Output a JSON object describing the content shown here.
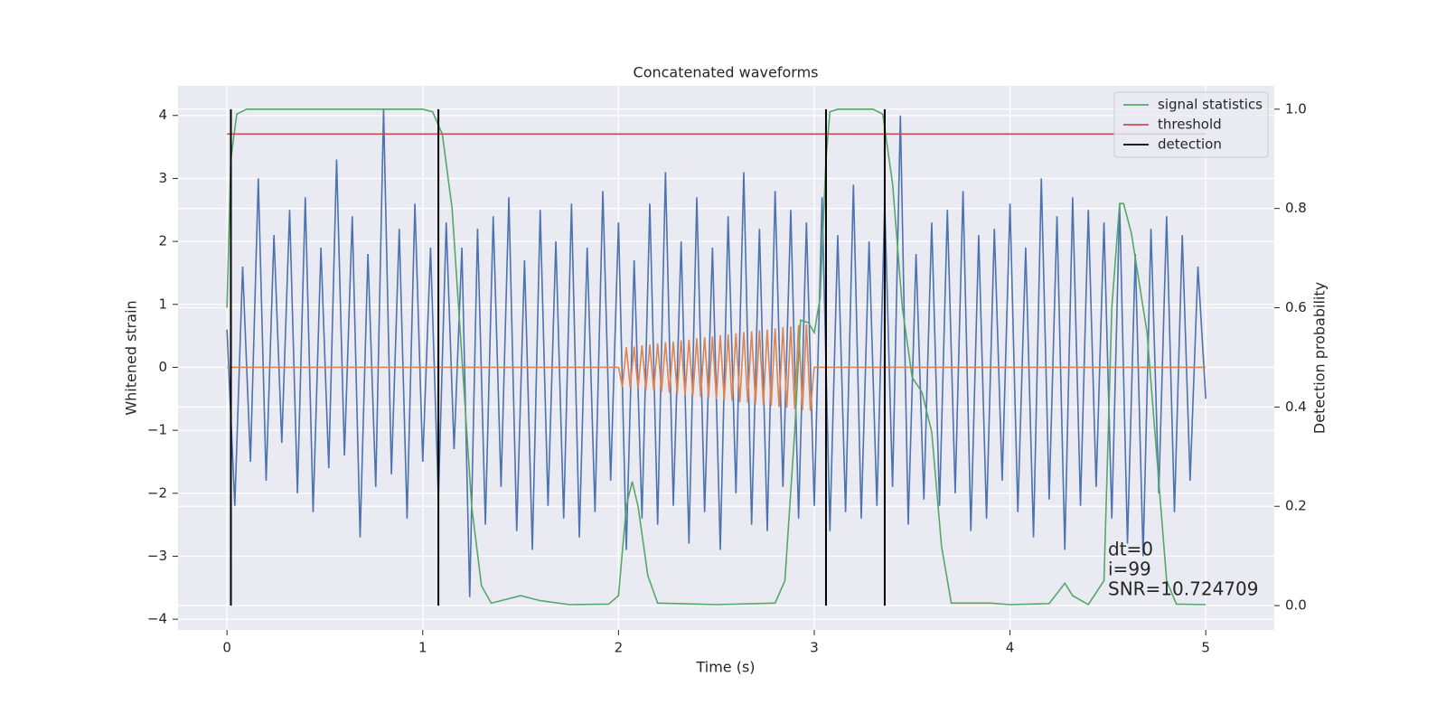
{
  "chart_data": {
    "type": "line",
    "title": "Concatenated waveforms",
    "x_label": "Time (s)",
    "y_label": "Whitened strain",
    "y2_label": "Detection probability",
    "xlim": [
      -0.25,
      5.35
    ],
    "ylim": [
      -4.17,
      4.47
    ],
    "y2lim": [
      -0.049,
      1.047
    ],
    "xticks": [
      0,
      1,
      2,
      3,
      4,
      5
    ],
    "yticks": [
      {
        "value": -4,
        "label": "−4"
      },
      {
        "value": -3,
        "label": "−3"
      },
      {
        "value": -2,
        "label": "−2"
      },
      {
        "value": -1,
        "label": "−1"
      },
      0,
      1,
      2,
      3,
      4
    ],
    "y2ticks": [
      {
        "value": 0,
        "label": "0.0"
      },
      {
        "value": 0.2,
        "label": "0.2"
      },
      {
        "value": 0.4,
        "label": "0.4"
      },
      {
        "value": 0.6,
        "label": "0.6"
      },
      {
        "value": 0.8,
        "label": "0.8"
      },
      {
        "value": 1,
        "label": "1.0"
      }
    ],
    "grid": true,
    "legend_position": "upper-right",
    "series": [
      {
        "color": "#4c72b0",
        "x": [
          0,
          0.04,
          0.08,
          0.12,
          0.16,
          0.2,
          0.24,
          0.28,
          0.32,
          0.36,
          0.4,
          0.44,
          0.48,
          0.52,
          0.56,
          0.6,
          0.64,
          0.68,
          0.72,
          0.76,
          0.8,
          0.84,
          0.88,
          0.92,
          0.96,
          1,
          1.04,
          1.08,
          1.12,
          1.16,
          1.2,
          1.24,
          1.28,
          1.32,
          1.36,
          1.4,
          1.44,
          1.48,
          1.52,
          1.56,
          1.6,
          1.64,
          1.68,
          1.72,
          1.76,
          1.8,
          1.84,
          1.88,
          1.92,
          1.96,
          2,
          2.04,
          2.08,
          2.12,
          2.16,
          2.2,
          2.24,
          2.28,
          2.32,
          2.36,
          2.4,
          2.44,
          2.48,
          2.52,
          2.56,
          2.6,
          2.64,
          2.68,
          2.72,
          2.76,
          2.8,
          2.84,
          2.88,
          2.92,
          2.96,
          3,
          3.04,
          3.08,
          3.12,
          3.16,
          3.2,
          3.24,
          3.28,
          3.32,
          3.36,
          3.4,
          3.44,
          3.48,
          3.52,
          3.56,
          3.6,
          3.64,
          3.68,
          3.72,
          3.76,
          3.8,
          3.84,
          3.88,
          3.92,
          3.96,
          4,
          4.04,
          4.08,
          4.12,
          4.16,
          4.2,
          4.24,
          4.28,
          4.32,
          4.36,
          4.4,
          4.44,
          4.48,
          4.52,
          4.56,
          4.6,
          4.64,
          4.68,
          4.72,
          4.76,
          4.8,
          4.84,
          4.88,
          4.92,
          4.96,
          5
        ],
        "values": [
          0.6,
          -2.2,
          1.6,
          -1.5,
          3.0,
          -1.8,
          2.1,
          -1.2,
          2.5,
          -2.0,
          2.7,
          -2.3,
          1.9,
          -1.6,
          3.3,
          -1.4,
          2.4,
          -2.7,
          1.8,
          -1.9,
          4.1,
          -1.7,
          2.2,
          -2.4,
          2.6,
          -1.5,
          1.9,
          -2.1,
          2.3,
          -1.3,
          1.9,
          -3.65,
          2.2,
          -2.5,
          2.4,
          -1.9,
          2.7,
          -2.6,
          1.7,
          -2.9,
          2.5,
          -2.2,
          2.0,
          -2.4,
          2.6,
          -2.7,
          1.9,
          -2.3,
          2.8,
          -1.8,
          2.3,
          -2.9,
          1.7,
          -2.4,
          2.6,
          -2.5,
          3.1,
          -2.2,
          2.0,
          -2.8,
          2.7,
          -2.3,
          1.9,
          -2.9,
          2.4,
          -2.0,
          3.1,
          -2.5,
          2.2,
          -2.6,
          2.8,
          -1.9,
          2.5,
          -2.4,
          2.3,
          -2.2,
          2.7,
          -2.6,
          2.1,
          -2.3,
          2.9,
          -2.4,
          2.0,
          -2.2,
          2.6,
          -1.9,
          4.0,
          -2.5,
          1.8,
          -2.1,
          2.3,
          -2.2,
          2.5,
          -2.0,
          2.8,
          -2.6,
          2.1,
          -2.4,
          2.2,
          -1.8,
          2.6,
          -2.3,
          1.9,
          -2.7,
          3.0,
          -2.1,
          2.4,
          -2.9,
          2.7,
          -2.2,
          2.5,
          -1.9,
          2.3,
          -2.4,
          2.6,
          -2.8,
          1.8,
          -3.0,
          2.2,
          -2.0,
          2.4,
          -2.3,
          2.1,
          -1.8,
          1.6,
          -0.5
        ]
      },
      {
        "color": "#dd8452",
        "x": [
          0,
          2,
          2.02,
          2.04,
          2.06,
          2.08,
          2.1,
          2.12,
          2.14,
          2.16,
          2.18,
          2.2,
          2.22,
          2.24,
          2.26,
          2.28,
          2.3,
          2.32,
          2.34,
          2.36,
          2.38,
          2.4,
          2.42,
          2.44,
          2.46,
          2.48,
          2.5,
          2.52,
          2.54,
          2.56,
          2.58,
          2.6,
          2.62,
          2.64,
          2.66,
          2.68,
          2.7,
          2.72,
          2.74,
          2.76,
          2.78,
          2.8,
          2.82,
          2.84,
          2.86,
          2.88,
          2.9,
          2.92,
          2.94,
          2.96,
          2.98,
          3,
          5
        ],
        "values": [
          0,
          0,
          -0.31,
          0.32,
          -0.32,
          0.33,
          -0.34,
          0.35,
          -0.36,
          0.36,
          -0.37,
          0.38,
          -0.39,
          0.4,
          -0.4,
          0.41,
          -0.42,
          0.43,
          -0.44,
          0.44,
          -0.45,
          0.46,
          -0.47,
          0.48,
          -0.48,
          0.49,
          -0.5,
          0.51,
          -0.52,
          0.52,
          -0.53,
          0.54,
          -0.55,
          0.56,
          -0.56,
          0.57,
          -0.58,
          0.59,
          -0.6,
          0.6,
          -0.61,
          0.62,
          -0.63,
          0.64,
          -0.64,
          0.65,
          -0.66,
          0.67,
          -0.68,
          0.68,
          -0.69,
          0,
          0
        ]
      },
      {
        "name": "signal statistics",
        "color": "#55a868",
        "axis": "y2",
        "x": [
          0,
          0.02,
          0.05,
          0.1,
          1,
          1.05,
          1.1,
          1.15,
          1.2,
          1.25,
          1.3,
          1.35,
          1.4,
          1.5,
          1.6,
          1.75,
          1.95,
          2,
          2.04,
          2.07,
          2.1,
          2.15,
          2.2,
          2.5,
          2.8,
          2.85,
          2.9,
          2.93,
          2.97,
          3,
          3.03,
          3.06,
          3.08,
          3.12,
          3.3,
          3.35,
          3.4,
          3.45,
          3.5,
          3.55,
          3.6,
          3.65,
          3.7,
          3.9,
          4,
          4.2,
          4.28,
          4.32,
          4.4,
          4.48,
          4.52,
          4.56,
          4.58,
          4.62,
          4.7,
          4.75,
          4.8,
          4.85,
          5
        ],
        "values": [
          0.6,
          0.9,
          0.99,
          1,
          1,
          0.995,
          0.95,
          0.8,
          0.5,
          0.2,
          0.04,
          0.005,
          0.01,
          0.02,
          0.01,
          0.002,
          0.003,
          0.02,
          0.2,
          0.25,
          0.2,
          0.06,
          0.005,
          0.002,
          0.005,
          0.05,
          0.35,
          0.575,
          0.57,
          0.55,
          0.62,
          0.9,
          0.995,
          1,
          1,
          0.99,
          0.85,
          0.6,
          0.46,
          0.43,
          0.35,
          0.12,
          0.005,
          0.005,
          0.002,
          0.004,
          0.045,
          0.02,
          0.002,
          0.05,
          0.6,
          0.81,
          0.81,
          0.75,
          0.55,
          0.3,
          0.05,
          0.003,
          0.002
        ]
      },
      {
        "name": "threshold",
        "color": "#c44e52",
        "axis": "y2",
        "x": [
          0,
          5
        ],
        "values": [
          0.95,
          0.95
        ]
      }
    ],
    "vlines": {
      "name": "detection",
      "color": "#000000",
      "axis": "y2",
      "x": [
        0.02,
        1.08,
        3.06,
        3.36
      ],
      "ymin": 0,
      "ymax": 1
    },
    "annotations": [
      "dt=0",
      "i=99",
      "SNR=10.724709"
    ]
  }
}
